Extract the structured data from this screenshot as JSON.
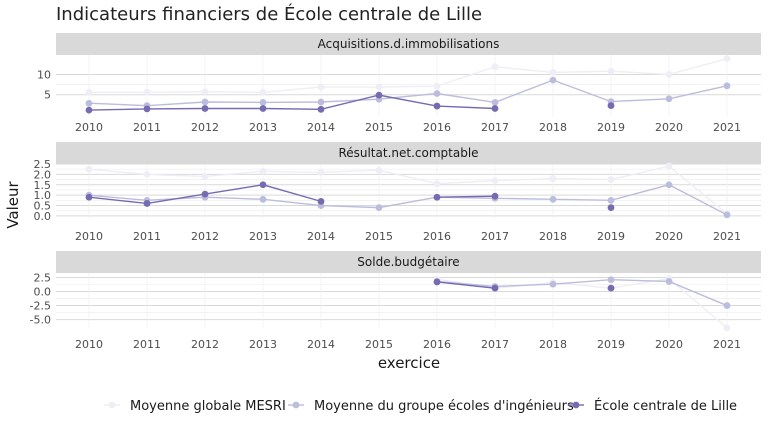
{
  "chart_data": {
    "type": "line",
    "title": "Indicateurs financiers de École centrale de Lille",
    "xlabel": "exercice",
    "ylabel": "Valeur",
    "x": [
      2010,
      2011,
      2012,
      2013,
      2014,
      2015,
      2016,
      2017,
      2018,
      2019,
      2020,
      2021
    ],
    "series_meta": [
      {
        "name": "Moyenne globale MESRI",
        "color": "#efedf5"
      },
      {
        "name": "Moyenne du groupe écoles d'ingénieurs",
        "color": "#bcbddc"
      },
      {
        "name": "École centrale de Lille",
        "color": "#756bb1"
      }
    ],
    "panels": [
      {
        "title": "Acquisitions.d.immobilisations",
        "yticks": [
          5,
          10
        ],
        "ylim": [
          -0.5,
          14.8
        ],
        "series": [
          {
            "name": "Moyenne globale MESRI",
            "values": [
              5.6,
              5.6,
              5.7,
              5.6,
              6.9,
              6.9,
              7.1,
              11.9,
              10.5,
              10.8,
              10.0,
              13.9
            ]
          },
          {
            "name": "Moyenne du groupe écoles d'ingénieurs",
            "values": [
              2.9,
              2.3,
              3.2,
              3.1,
              3.2,
              3.9,
              5.3,
              3.1,
              8.6,
              3.3,
              4.0,
              7.2
            ]
          },
          {
            "name": "École centrale de Lille",
            "values": [
              1.2,
              1.5,
              1.6,
              1.6,
              1.4,
              4.9,
              2.2,
              1.6,
              null,
              2.3,
              null,
              null
            ]
          }
        ]
      },
      {
        "title": "Résultat.net.comptable",
        "yticks": [
          0.0,
          0.5,
          1.0,
          1.5,
          2.0,
          2.5
        ],
        "yticklabels": [
          "0.0",
          "0.5",
          "1.0",
          "1.5",
          "2.0",
          "2.5"
        ],
        "ylim": [
          -0.1,
          2.5
        ],
        "series": [
          {
            "name": "Moyenne globale MESRI",
            "values": [
              2.25,
              2.0,
              1.9,
              2.15,
              2.1,
              2.2,
              1.55,
              1.7,
              1.8,
              1.75,
              2.4,
              0.1
            ]
          },
          {
            "name": "Moyenne du groupe écoles d'ingénieurs",
            "values": [
              1.0,
              0.75,
              0.9,
              0.8,
              0.5,
              0.4,
              0.9,
              0.85,
              0.8,
              0.75,
              1.5,
              0.05
            ]
          },
          {
            "name": "École centrale de Lille",
            "values": [
              0.9,
              0.6,
              1.05,
              1.5,
              0.7,
              null,
              0.9,
              0.95,
              null,
              0.4,
              null,
              null
            ]
          }
        ]
      },
      {
        "title": "Solde.budgétaire",
        "yticks": [
          -5.0,
          -2.5,
          0.0,
          2.5
        ],
        "yticklabels": [
          "-5.0",
          "-2.5",
          "0.0",
          "2.5"
        ],
        "ylim": [
          -6.5,
          3.3
        ],
        "series": [
          {
            "name": "Moyenne globale MESRI",
            "values": [
              null,
              null,
              null,
              null,
              null,
              null,
              2.2,
              0.6,
              1.6,
              0.6,
              2.3,
              -6.5
            ]
          },
          {
            "name": "Moyenne du groupe écoles d'ingénieurs",
            "values": [
              null,
              null,
              null,
              null,
              null,
              null,
              1.8,
              0.9,
              1.3,
              2.1,
              1.8,
              -2.5
            ]
          },
          {
            "name": "École centrale de Lille",
            "values": [
              null,
              null,
              null,
              null,
              null,
              null,
              1.7,
              0.6,
              null,
              0.6,
              null,
              null
            ]
          }
        ]
      }
    ],
    "legend_position": "bottom",
    "grid": true
  }
}
